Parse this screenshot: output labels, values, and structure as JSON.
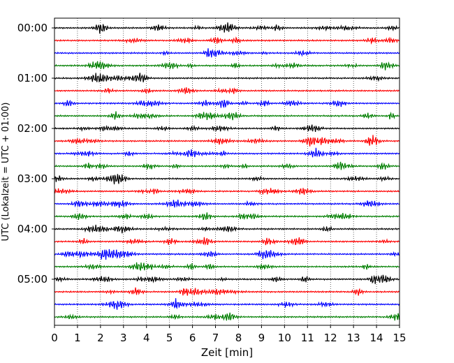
{
  "chart_data": {
    "type": "line",
    "title": "",
    "xlabel": "Zeit  [min]",
    "ylabel": "UTC (Lokalzeit = UTC + 01:00)",
    "xlim": [
      0,
      15
    ],
    "x_ticks": [
      0,
      1,
      2,
      3,
      4,
      5,
      6,
      7,
      8,
      9,
      10,
      11,
      12,
      13,
      14,
      15
    ],
    "y_ticks": [
      {
        "label": "00:00",
        "minutes": 0
      },
      {
        "label": "01:00",
        "minutes": 60
      },
      {
        "label": "02:00",
        "minutes": 120
      },
      {
        "label": "03:00",
        "minutes": 180
      },
      {
        "label": "04:00",
        "minutes": 240
      },
      {
        "label": "05:00",
        "minutes": 300
      }
    ],
    "minutes_per_row": 15,
    "row_count": 24,
    "trace_colors": [
      "#000000",
      "#ff0000",
      "#0000ff",
      "#007f00"
    ],
    "grid": "vertical dotted",
    "series": []
  }
}
